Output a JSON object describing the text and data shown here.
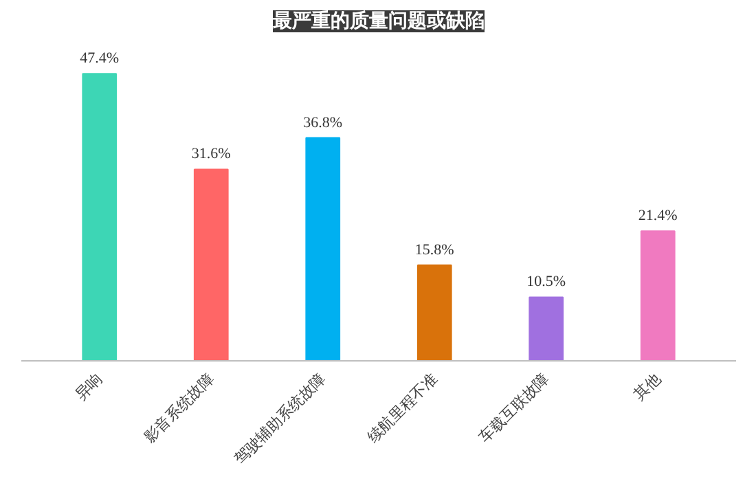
{
  "chart_data": {
    "type": "bar",
    "title": "最严重的质量问题或缺陷",
    "categories": [
      "异响",
      "影音系统故障",
      "驾驶辅助系统故障",
      "续航里程不准",
      "车载互联故障",
      "其他"
    ],
    "values": [
      47.4,
      31.6,
      36.8,
      15.8,
      10.5,
      21.4
    ],
    "value_labels": [
      "47.4%",
      "31.6%",
      "36.8%",
      "15.8%",
      "10.5%",
      "21.4%"
    ],
    "colors": [
      "#3dd6b5",
      "#ff6666",
      "#00b0f0",
      "#d9720b",
      "#a070e0",
      "#f07ac0"
    ]
  }
}
